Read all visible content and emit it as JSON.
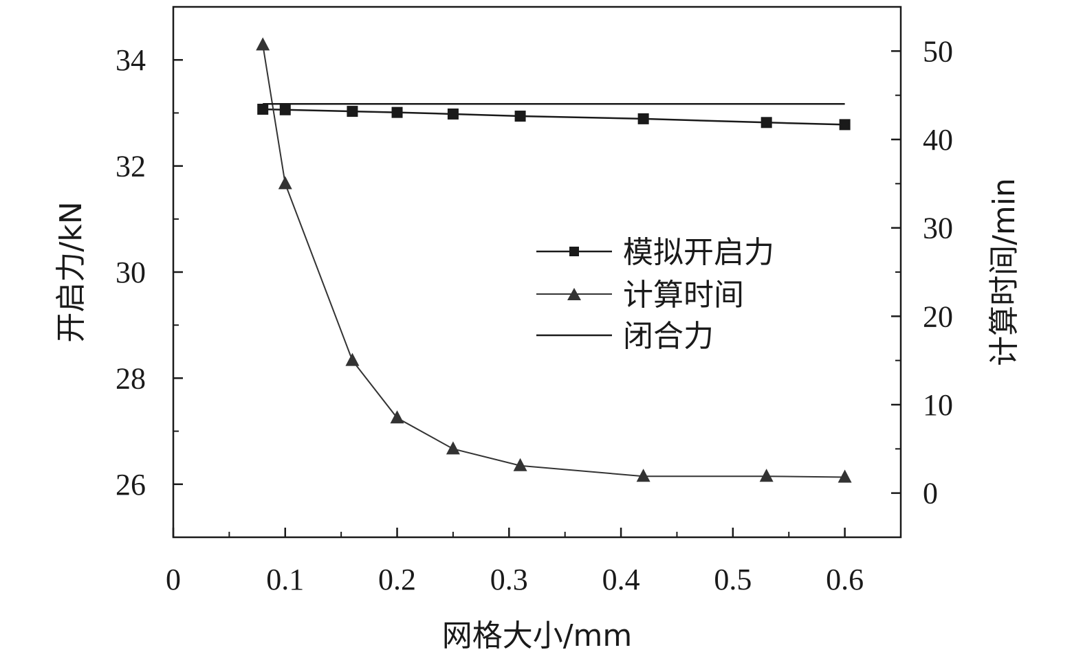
{
  "chart_data": {
    "type": "line",
    "xlabel": "网格大小/mm",
    "ylabel_left": "开启力/kN",
    "ylabel_right": "计算时间/min",
    "x_ticks": [
      "0",
      "0.1",
      "0.2",
      "0.3",
      "0.4",
      "0.5",
      "0.6"
    ],
    "y_left_ticks": [
      "26",
      "28",
      "30",
      "32",
      "34"
    ],
    "y_right_ticks": [
      "0",
      "10",
      "20",
      "30",
      "40",
      "50"
    ],
    "xlim": [
      0,
      0.65
    ],
    "ylim_left": [
      25,
      35
    ],
    "ylim_right": [
      -5,
      55
    ],
    "grid": false,
    "legend_position": "center-right",
    "series": [
      {
        "name": "模拟开启力",
        "axis": "left",
        "marker": "square",
        "color": "#1a1a1a",
        "x": [
          0.08,
          0.1,
          0.16,
          0.2,
          0.25,
          0.31,
          0.42,
          0.53,
          0.6
        ],
        "y": [
          33.07,
          33.06,
          33.03,
          33.01,
          32.98,
          32.94,
          32.89,
          32.82,
          32.78
        ]
      },
      {
        "name": "计算时间",
        "axis": "right",
        "marker": "triangle",
        "color": "#333333",
        "x": [
          0.08,
          0.1,
          0.16,
          0.2,
          0.25,
          0.31,
          0.42,
          0.53,
          0.6
        ],
        "y": [
          50.7,
          35.0,
          15.0,
          8.5,
          5.0,
          3.1,
          1.9,
          1.9,
          1.8
        ]
      },
      {
        "name": "闭合力",
        "axis": "left",
        "marker": "none",
        "color": "#1a1a1a",
        "x": [
          0.08,
          0.6
        ],
        "y": [
          33.17,
          33.17
        ]
      }
    ]
  }
}
